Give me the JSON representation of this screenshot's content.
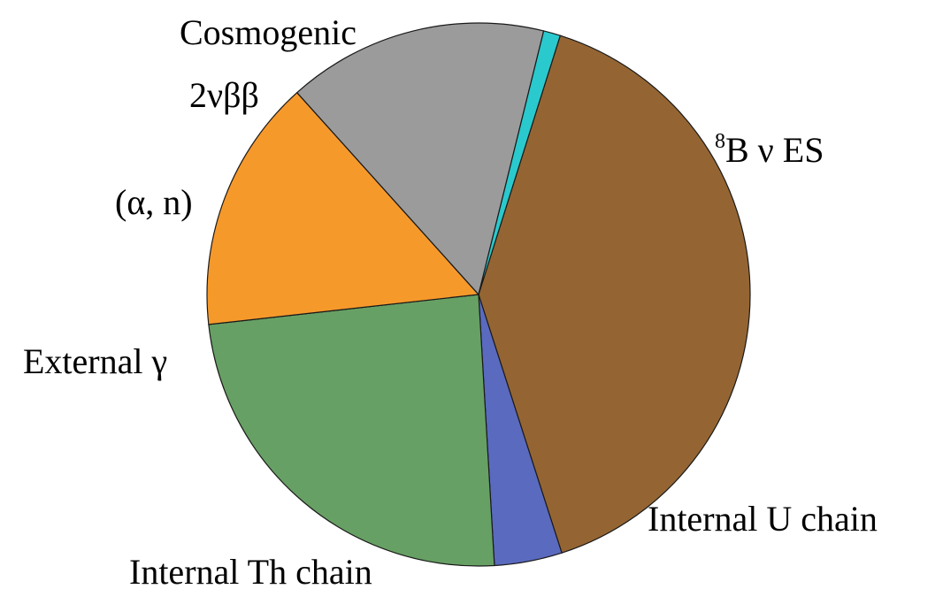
{
  "chart_data": {
    "type": "pie",
    "title": "",
    "slices": [
      {
        "label": "8B ν ES",
        "label_sup": "8",
        "label_main": "B ν ES",
        "value": 39.9,
        "color": "#946533"
      },
      {
        "label": "Internal U chain",
        "value": 4.0,
        "color": "#5a6abf"
      },
      {
        "label": "Internal Th chain",
        "value": 24.0,
        "color": "#67a064"
      },
      {
        "label": "External γ",
        "value": 15.0,
        "color": "#f6992b"
      },
      {
        "label": "(α, n)",
        "value": 0.0,
        "color": "#1b1b1b"
      },
      {
        "label": "2νββ",
        "value": 15.4,
        "color": "#9b9b9b"
      },
      {
        "label": "Cosmogenic",
        "value": 1.0,
        "color": "#2ac9cd"
      }
    ],
    "start_angle_deg_from_top": 17.5,
    "direction": "clockwise",
    "legend": "none"
  }
}
